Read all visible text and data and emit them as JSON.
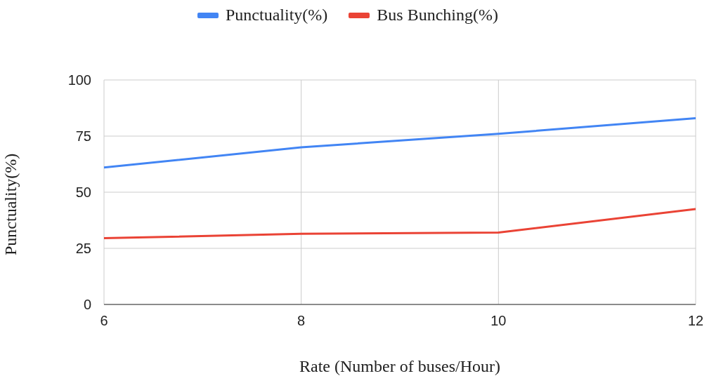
{
  "chart_data": {
    "type": "line",
    "xlabel": "Rate (Number of buses/Hour)",
    "ylabel": "Punctuality(%)",
    "x": [
      6,
      8,
      10,
      12
    ],
    "series": [
      {
        "name": "Punctuality(%)",
        "color": "#4285f4",
        "values": [
          61,
          70,
          76,
          83
        ]
      },
      {
        "name": "Bus Bunching(%)",
        "color": "#ea4335",
        "values": [
          29.5,
          31.5,
          32,
          42.5
        ]
      }
    ],
    "xlim": [
      6,
      12
    ],
    "xticks": [
      6,
      8,
      10,
      12
    ],
    "ylim": [
      0,
      100
    ],
    "yticks": [
      0,
      25,
      50,
      75,
      100
    ],
    "grid": true,
    "legend": "top",
    "marker": "none"
  }
}
